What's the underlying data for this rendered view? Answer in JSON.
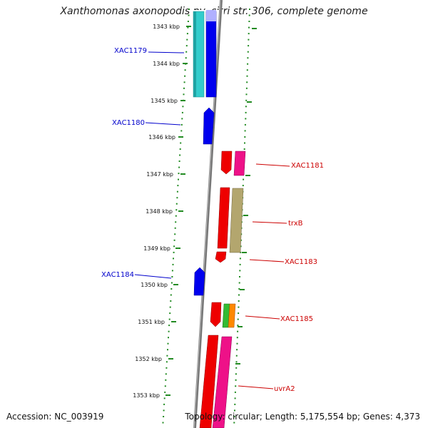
{
  "title": "Xanthomonas axonopodis pv. citri str. 306, complete genome",
  "accession": "Accession: NC_003919",
  "topology": "Topology: circular; Length: 5,175,554 bp; Genes: 4,373",
  "colors": {
    "backbone": "#888888",
    "tick": "#228b22",
    "label_left": "#0000cc",
    "label_right": "#cc0000",
    "cyan": "#33cccc",
    "blue": "#0000ee",
    "red": "#ee0000",
    "magenta": "#ee1188",
    "olive": "#b3a66e",
    "green": "#33bb33",
    "orange": "#ff8800"
  },
  "kbp_labels": [
    "1343 kbp",
    "1344 kbp",
    "1345 kbp",
    "1346 kbp",
    "1347 kbp",
    "1348 kbp",
    "1349 kbp",
    "1350 kbp",
    "1351 kbp",
    "1352 kbp",
    "1353 kbp"
  ],
  "gene_labels": {
    "XAC1179": "XAC1179",
    "XAC1180": "XAC1180",
    "XAC1181": "XAC1181",
    "trxB": "trxB",
    "XAC1183": "XAC1183",
    "XAC1184": "XAC1184",
    "XAC1185": "XAC1185",
    "uvrA2": "uvrA2"
  }
}
